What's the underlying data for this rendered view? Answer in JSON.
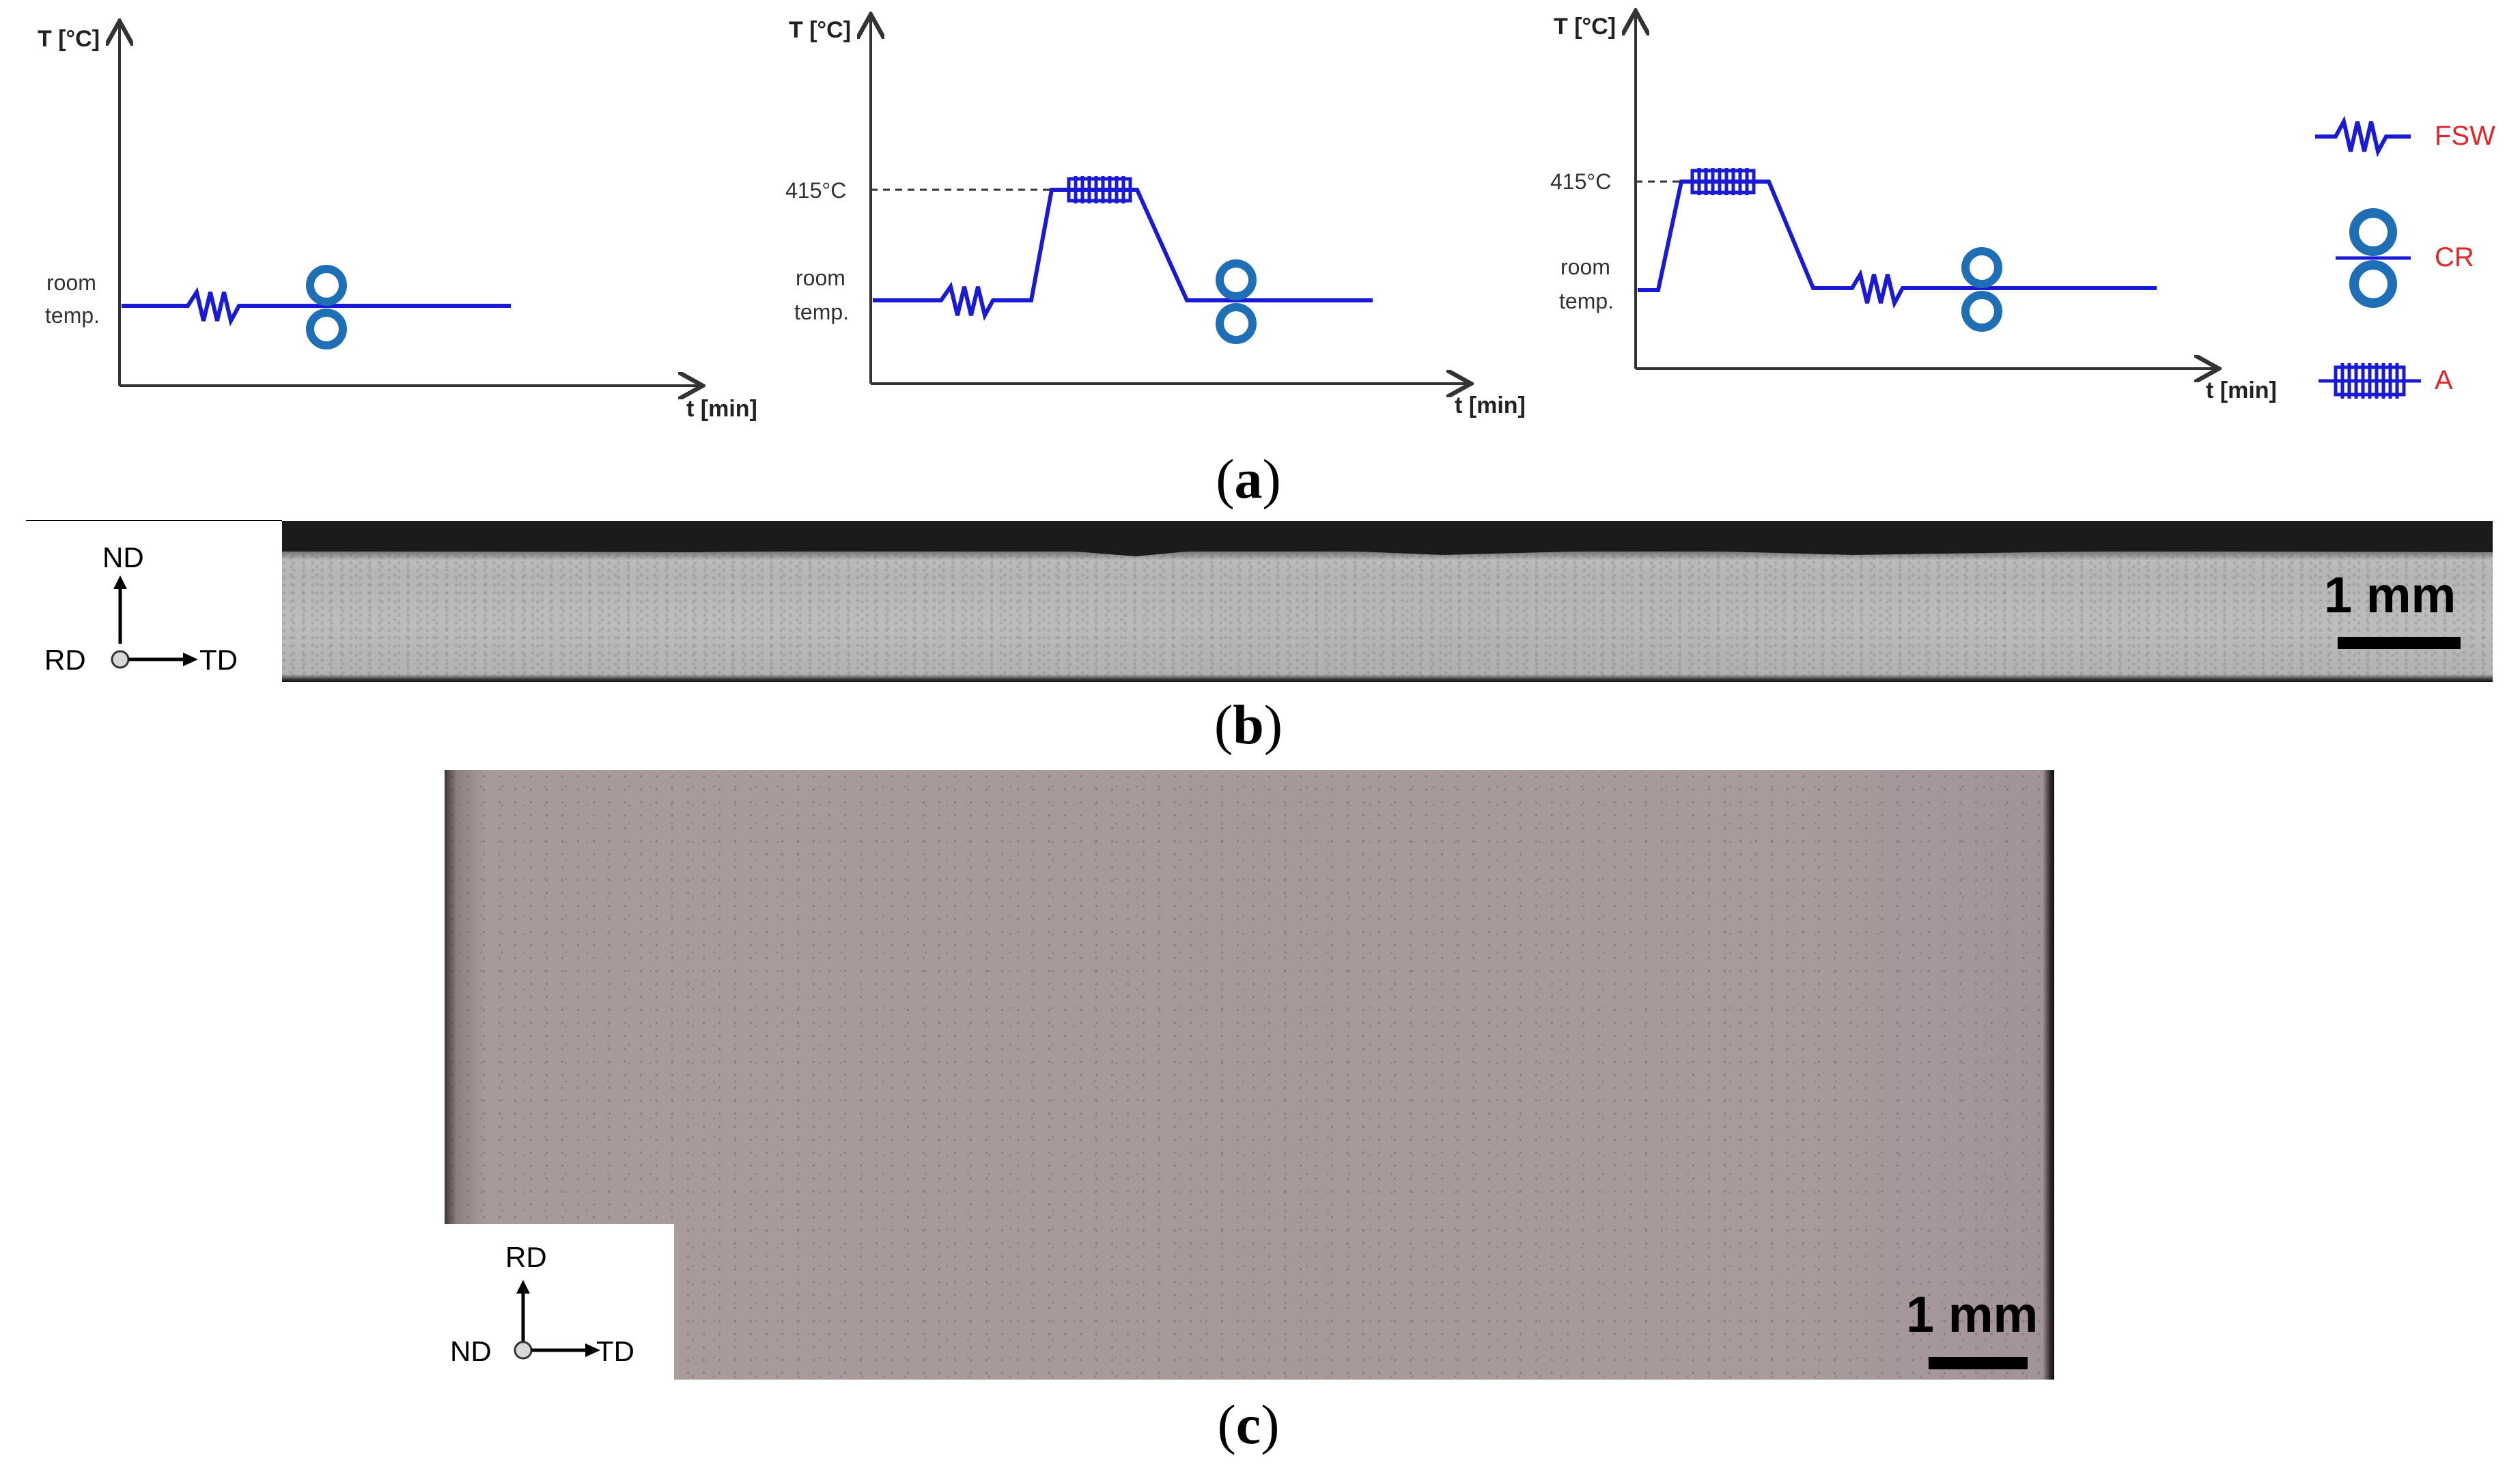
{
  "panel_a": {
    "charts": [
      {
        "y_axis_label": "T [°C]",
        "x_axis_label": "t [min]",
        "y_tick_labels": [
          "room",
          "temp."
        ]
      },
      {
        "y_axis_label": "T [°C]",
        "x_axis_label": "t [min]",
        "y_tick_labels": [
          "415°C",
          "room",
          "temp."
        ]
      },
      {
        "y_axis_label": "T [°C]",
        "x_axis_label": "t [min]",
        "y_tick_labels": [
          "415°C",
          "room",
          "temp."
        ]
      }
    ],
    "legend": [
      {
        "symbol": "zigzag",
        "label": "FSW"
      },
      {
        "symbol": "rollers",
        "label": "CR"
      },
      {
        "symbol": "hatch",
        "label": "A"
      }
    ],
    "caption": {
      "open": "(",
      "letter": "a",
      "close": ")"
    }
  },
  "panel_b": {
    "scale_label": "1 mm",
    "axes": {
      "up": "ND",
      "left": "RD",
      "right": "TD"
    },
    "caption": {
      "open": "(",
      "letter": "b",
      "close": ")"
    }
  },
  "panel_c": {
    "scale_label": "1 mm",
    "axes": {
      "up": "RD",
      "left": "ND",
      "right": "TD"
    },
    "caption": {
      "open": "(",
      "letter": "c",
      "close": ")"
    }
  },
  "colors": {
    "line": "#1a1ad6",
    "legend_text": "#e0262b",
    "roller": "#1e6fb5",
    "axis": "#333333"
  }
}
